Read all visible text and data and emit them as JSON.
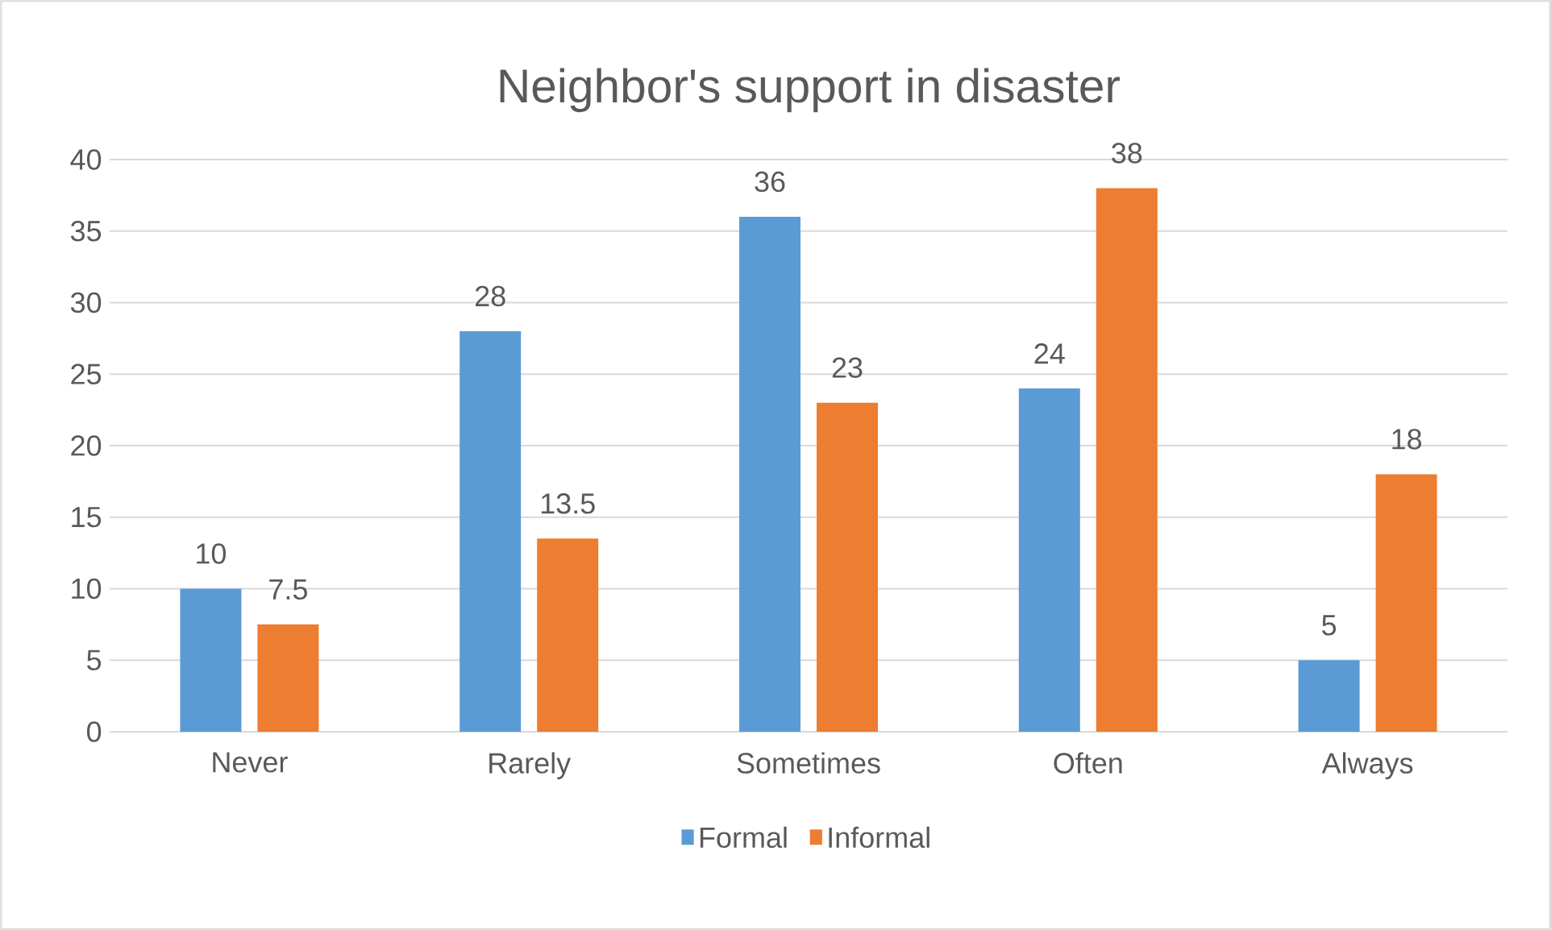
{
  "chart_data": {
    "type": "bar",
    "title": "Neighbor's support in disaster",
    "categories": [
      "Never",
      "Rarely",
      "Sometimes",
      "Often",
      "Always"
    ],
    "series": [
      {
        "name": "Formal",
        "color": "#5b9bd5",
        "values": [
          10,
          28,
          36,
          24,
          5
        ]
      },
      {
        "name": "Informal",
        "color": "#ed7d31",
        "values": [
          7.5,
          13.5,
          23,
          38,
          18
        ]
      }
    ],
    "ylim": [
      0,
      40
    ],
    "yticks": [
      0,
      5,
      10,
      15,
      20,
      25,
      30,
      35,
      40
    ],
    "grid": "y",
    "legend": "bottom",
    "data_labels": true
  }
}
